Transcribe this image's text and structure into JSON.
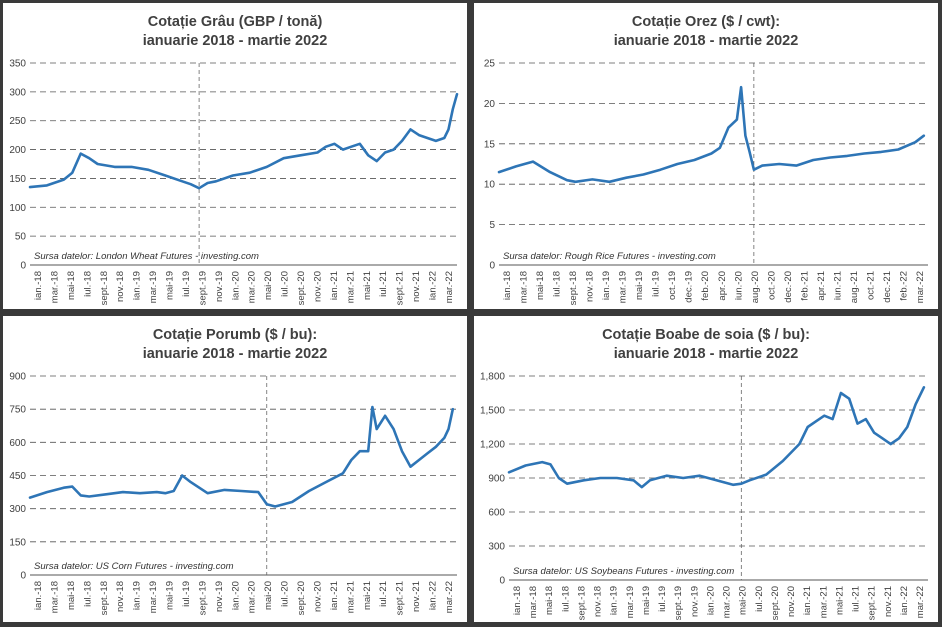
{
  "chart_data": [
    {
      "type": "line",
      "title_line1": "Cotație Grâu (GBP / tonă)",
      "title_line2": "ianuarie 2018 - martie 2022",
      "source": "Sursa datelor: London Wheat Futures - investing.com",
      "ylim": [
        0,
        350
      ],
      "yticks": [
        "0",
        "50",
        "100",
        "150",
        "200",
        "250",
        "300",
        "350"
      ],
      "xticks": [
        "ian.-18",
        "mar.-18",
        "mai-18",
        "iul.-18",
        "sept.-18",
        "nov.-18",
        "ian.-19",
        "mar.-19",
        "mai-19",
        "iul.-19",
        "sept.-19",
        "nov.-19",
        "ian.-20",
        "mar.-20",
        "mai-20",
        "iul.-20",
        "sept.-20",
        "nov.-20",
        "ian.-21",
        "mar.-21",
        "mai-21",
        "iul.-21",
        "sept.-21",
        "nov.-21",
        "ian.-22",
        "mar.-22"
      ],
      "vline_at_month": 20,
      "x_months": [
        0,
        2,
        4,
        5,
        6,
        7,
        8,
        10,
        12,
        14,
        16,
        18,
        19,
        20,
        21,
        22,
        24,
        26,
        28,
        30,
        32,
        34,
        35,
        36,
        37,
        38,
        39,
        40,
        41,
        42,
        43,
        44,
        45,
        46,
        47,
        48,
        49,
        49.5,
        50,
        50.5
      ],
      "values": [
        135,
        138,
        148,
        160,
        193,
        185,
        175,
        170,
        170,
        165,
        155,
        145,
        140,
        133,
        142,
        145,
        155,
        160,
        170,
        185,
        190,
        195,
        205,
        210,
        200,
        205,
        210,
        190,
        180,
        195,
        200,
        215,
        235,
        225,
        220,
        215,
        220,
        235,
        270,
        296
      ]
    },
    {
      "type": "line",
      "title_line1": "Cotație Orez ($ / cwt):",
      "title_line2": "ianuarie 2018 - martie 2022",
      "source": "Sursa datelor: Rough Rice Futures - investing.com",
      "ylim": [
        0,
        25
      ],
      "yticks": [
        "0",
        "5",
        "10",
        "15",
        "20",
        "25"
      ],
      "xticks": [
        "ian.-18",
        "mar.-18",
        "mai-18",
        "iul.-18",
        "sept.-18",
        "nov.-18",
        "ian.-19",
        "mar.-19",
        "mai-19",
        "iul.-19",
        "oct.-19",
        "dec.-19",
        "feb.-20",
        "apr.-20",
        "iun.-20",
        "aug.-20",
        "oct.-20",
        "dec.-20",
        "feb.-21",
        "apr.-21",
        "iun.-21",
        "aug.-21",
        "oct.-21",
        "dec.-21",
        "feb.-22",
        "mar.-22"
      ],
      "vline_at_month": 30,
      "x_months": [
        0,
        2,
        4,
        6,
        8,
        9,
        11,
        13,
        15,
        17,
        19,
        21,
        23,
        25,
        26,
        27,
        28,
        28.5,
        29,
        29.5,
        30,
        31,
        33,
        35,
        37,
        39,
        41,
        43,
        45,
        47,
        49,
        50
      ],
      "values": [
        11.5,
        12.2,
        12.8,
        11.5,
        10.5,
        10.3,
        10.6,
        10.3,
        10.8,
        11.2,
        11.8,
        12.5,
        13.0,
        13.8,
        14.5,
        17.0,
        18.0,
        22.0,
        16.0,
        14.0,
        11.8,
        12.3,
        12.5,
        12.3,
        13.0,
        13.3,
        13.5,
        13.8,
        14.0,
        14.3,
        15.2,
        16.0
      ]
    },
    {
      "type": "line",
      "title_line1": "Cotație Porumb ($ / bu):",
      "title_line2": "ianuarie 2018 - martie 2022",
      "source": "Sursa datelor: US Corn Futures - investing.com",
      "ylim": [
        0,
        900
      ],
      "yticks": [
        "0",
        "150",
        "300",
        "450",
        "600",
        "750",
        "900"
      ],
      "xticks": [
        "ian.-18",
        "mar.-18",
        "mai-18",
        "iul.-18",
        "sept.-18",
        "nov.-18",
        "ian.-19",
        "mar.-19",
        "mai-19",
        "iul.-19",
        "sept.-19",
        "nov.-19",
        "ian.-20",
        "mar.-20",
        "mai-20",
        "iul.-20",
        "sept.-20",
        "nov.-20",
        "ian.-21",
        "mar.-21",
        "mai-21",
        "iul.-21",
        "sept.-21",
        "nov.-21",
        "ian.-22",
        "mar.-22"
      ],
      "vline_at_month": 28,
      "x_months": [
        0,
        2,
        4,
        5,
        6,
        7,
        9,
        11,
        13,
        15,
        16,
        17,
        18,
        19,
        21,
        23,
        25,
        27,
        28,
        29,
        30,
        31,
        33,
        35,
        37,
        38,
        39,
        40,
        40.5,
        41,
        42,
        43,
        44,
        45,
        46,
        47,
        48,
        49,
        49.5,
        50
      ],
      "values": [
        350,
        375,
        395,
        400,
        360,
        355,
        365,
        375,
        370,
        375,
        370,
        380,
        450,
        420,
        370,
        385,
        380,
        375,
        320,
        310,
        320,
        330,
        380,
        420,
        460,
        520,
        560,
        560,
        760,
        660,
        720,
        660,
        560,
        490,
        520,
        550,
        580,
        620,
        660,
        750
      ]
    },
    {
      "type": "line",
      "title_line1": "Cotație Boabe de soia ($ / bu):",
      "title_line2": "ianuarie 2018 - martie 2022",
      "source": "Sursa datelor: US Soybeans Futures - investing.com",
      "ylim": [
        0,
        1800
      ],
      "yticks": [
        "0",
        "300",
        "600",
        "900",
        "1,200",
        "1,500",
        "1,800"
      ],
      "xticks": [
        "ian.-18",
        "mar.-18",
        "mai-18",
        "iul.-18",
        "sept.-18",
        "nov.-18",
        "ian.-19",
        "mar.-19",
        "mai-19",
        "iul.-19",
        "sept.-19",
        "nov.-19",
        "ian.-20",
        "mar.-20",
        "mai-20",
        "iul.-20",
        "sept.-20",
        "nov.-20",
        "ian.-21",
        "mar.-21",
        "mai-21",
        "iul.-21",
        "sept.-21",
        "nov.-21",
        "ian.-22",
        "mar.-22"
      ],
      "vline_at_month": 28,
      "x_months": [
        0,
        2,
        4,
        5,
        6,
        7,
        9,
        11,
        13,
        15,
        16,
        17,
        19,
        21,
        23,
        25,
        27,
        28,
        29,
        31,
        33,
        35,
        36,
        37,
        38,
        39,
        40,
        41,
        42,
        43,
        44,
        45,
        46,
        47,
        48,
        49,
        50
      ],
      "values": [
        950,
        1010,
        1040,
        1020,
        900,
        850,
        880,
        900,
        900,
        880,
        820,
        880,
        920,
        900,
        920,
        880,
        840,
        850,
        880,
        930,
        1050,
        1200,
        1350,
        1400,
        1450,
        1420,
        1650,
        1600,
        1380,
        1420,
        1300,
        1250,
        1200,
        1250,
        1350,
        1550,
        1700
      ]
    }
  ]
}
